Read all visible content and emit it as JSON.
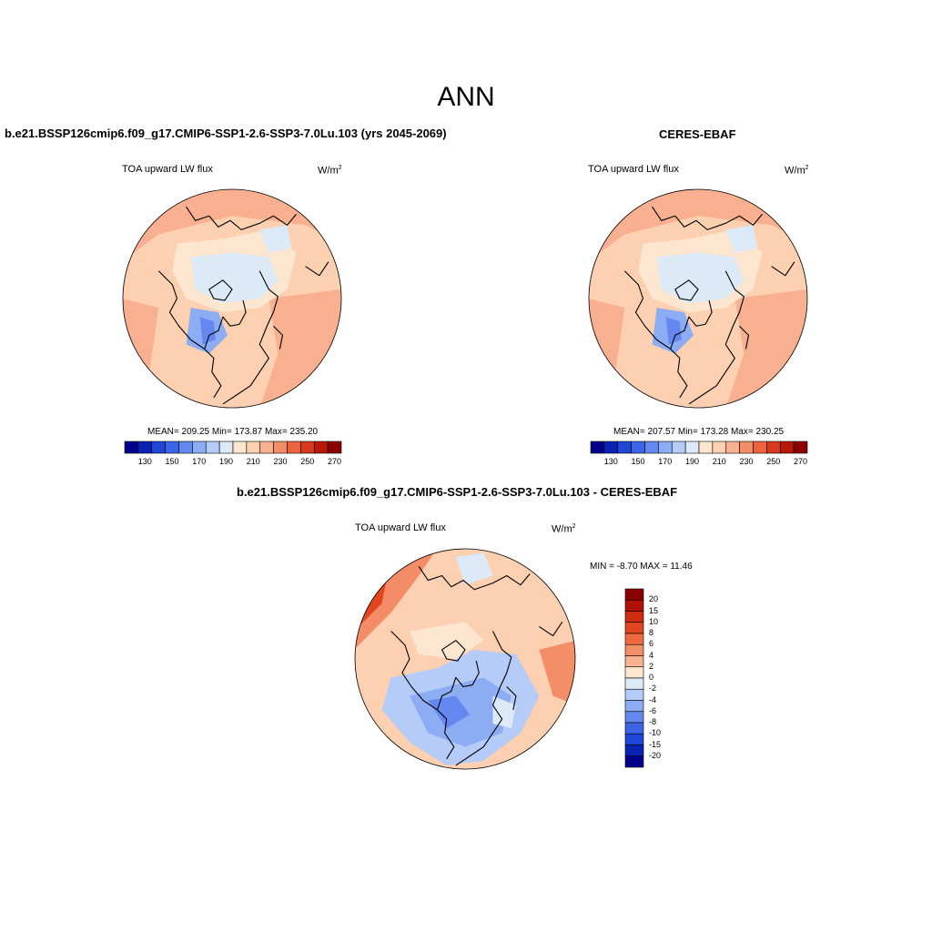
{
  "main_title": "ANN",
  "panels": [
    {
      "title": "b.e21.BSSP126cmip6.f09_g17.CMIP6-SSP1-2.6-SSP3-7.0Lu.103 (yrs 2045-2069)",
      "variable": "TOA upward LW flux",
      "units_base": "W/m",
      "units_exp": "2",
      "stats": "MEAN= 209.25  Min= 173.87  Max= 235.20"
    },
    {
      "title": "CERES-EBAF",
      "variable": "TOA upward LW flux",
      "units_base": "W/m",
      "units_exp": "2",
      "stats": "MEAN= 207.57  Min= 173.28  Max= 230.25"
    },
    {
      "title": "b.e21.BSSP126cmip6.f09_g17.CMIP6-SSP1-2.6-SSP3-7.0Lu.103 - CERES-EBAF",
      "variable": "TOA upward LW flux",
      "units_base": "W/m",
      "units_exp": "2",
      "stats": "MIN =  -8.70 MAX =  11.46"
    }
  ],
  "colorbar_horizontal": {
    "colors": [
      "#00008b",
      "#0a22b4",
      "#1e46d8",
      "#3c64e6",
      "#6488f0",
      "#8cacf4",
      "#b6ccf8",
      "#dceaf8",
      "#fde6d0",
      "#fcd0b0",
      "#f8b090",
      "#f48c68",
      "#ea6440",
      "#d8381c",
      "#b81808",
      "#8b0000"
    ],
    "labels": [
      "130",
      "150",
      "170",
      "190",
      "210",
      "230",
      "250",
      "270"
    ]
  },
  "colorbar_vertical": {
    "colors": [
      "#8b0000",
      "#b01008",
      "#d02a10",
      "#e2461e",
      "#f06a40",
      "#f48e68",
      "#f8b290",
      "#fde6d0",
      "#dceaf8",
      "#b6ccf8",
      "#8cacf4",
      "#6488f0",
      "#3c64e6",
      "#1e46d8",
      "#0a22b4",
      "#00008b"
    ],
    "labels": [
      "20",
      "15",
      "10",
      "8",
      "6",
      "4",
      "2",
      "0",
      "-2",
      "-4",
      "-6",
      "-8",
      "-10",
      "-15",
      "-20"
    ]
  }
}
